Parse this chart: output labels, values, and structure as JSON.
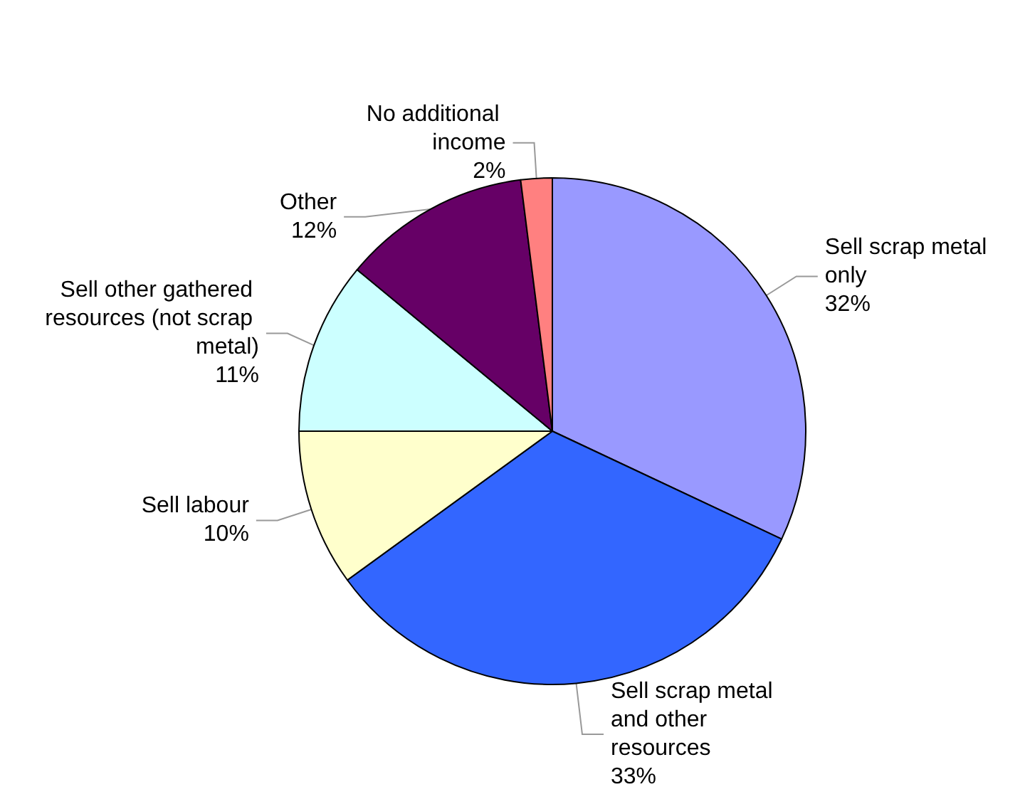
{
  "chart_data": {
    "type": "pie",
    "categories": [
      "Sell scrap metal only",
      "Sell scrap metal and other resources",
      "Sell labour",
      "Sell other gathered resources (not scrap metal)",
      "Other",
      "No additional income"
    ],
    "values": [
      32,
      33,
      10,
      11,
      12,
      2
    ],
    "colors": [
      "#9999ff",
      "#3366ff",
      "#ffffcc",
      "#ccffff",
      "#660066",
      "#ff8080"
    ],
    "value_labels": [
      "32%",
      "33%",
      "10%",
      "11%",
      "12%",
      "2%"
    ],
    "legend": false
  }
}
